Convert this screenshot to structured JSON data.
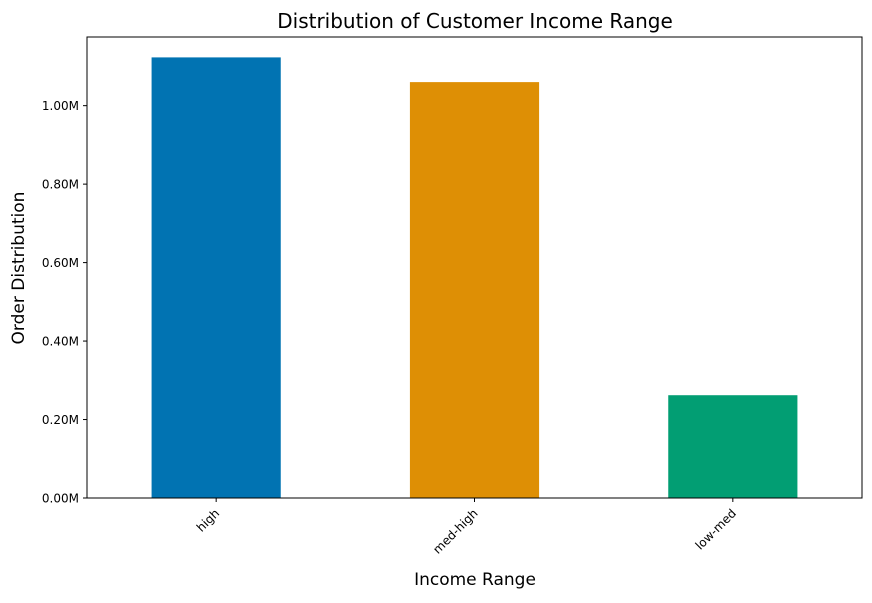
{
  "chart_data": {
    "type": "bar",
    "title": "Distribution of Customer Income Range",
    "xlabel": "Income Range",
    "ylabel": "Order Distribution",
    "categories": [
      "high",
      "med-high",
      "low-med"
    ],
    "values": [
      1123000,
      1060000,
      262000
    ],
    "colors": [
      "#0173b2",
      "#de8f05",
      "#029e73"
    ],
    "ylim": [
      0,
      1175000
    ],
    "yticks": [
      0,
      200000,
      400000,
      600000,
      800000,
      1000000
    ],
    "ytick_labels": [
      "0.00M",
      "0.20M",
      "0.40M",
      "0.60M",
      "0.80M",
      "1.00M"
    ],
    "grid": false,
    "legend": false
  }
}
